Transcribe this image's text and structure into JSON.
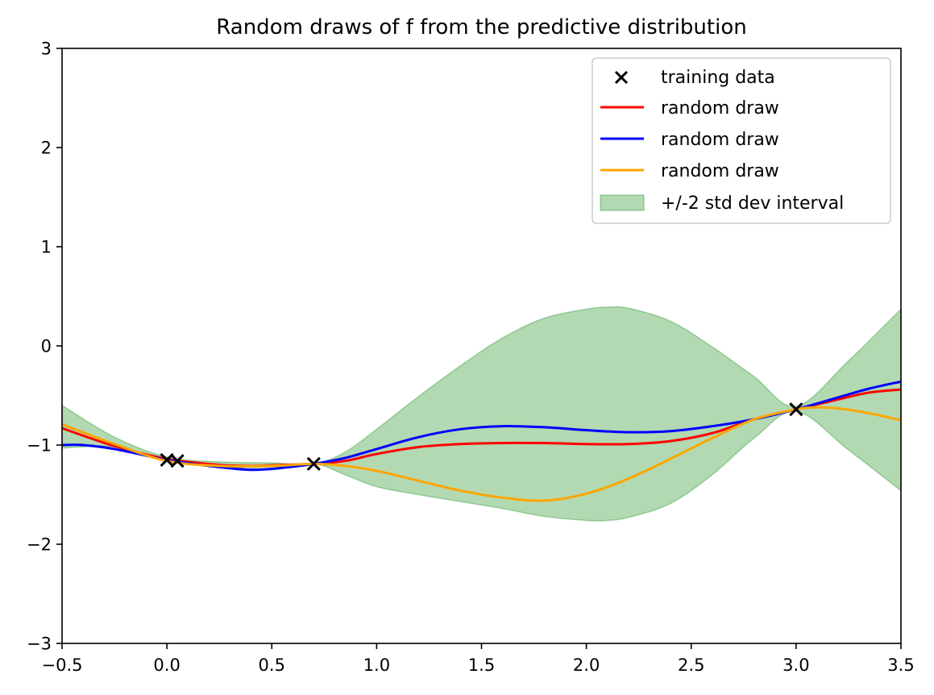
{
  "chart_data": {
    "type": "line",
    "title": "Random draws of f from the predictive distribution",
    "xlabel": "",
    "ylabel": "",
    "xlim": [
      -0.5,
      3.5
    ],
    "ylim": [
      -3,
      3
    ],
    "xticks": [
      -0.5,
      0.0,
      0.5,
      1.0,
      1.5,
      2.0,
      2.5,
      3.0,
      3.5
    ],
    "xtick_labels": [
      "−0.5",
      "0.0",
      "0.5",
      "1.0",
      "1.5",
      "2.0",
      "2.5",
      "3.0",
      "3.5"
    ],
    "yticks": [
      -3,
      -2,
      -1,
      0,
      1,
      2,
      3
    ],
    "ytick_labels": [
      "−3",
      "−2",
      "−1",
      "0",
      "1",
      "2",
      "3"
    ],
    "grid": false,
    "legend_position": "top-right",
    "training_data": {
      "name": "training data",
      "color": "#000000",
      "marker": "x",
      "points": [
        [
          0.0,
          -1.15
        ],
        [
          0.05,
          -1.16
        ],
        [
          0.7,
          -1.19
        ],
        [
          3.0,
          -0.64
        ]
      ]
    },
    "interval": {
      "name": "+/-2 std dev interval",
      "color": "#008000",
      "x": [
        -0.5,
        -0.25,
        0.0,
        0.25,
        0.5,
        0.7,
        0.85,
        1.0,
        1.2,
        1.4,
        1.6,
        1.8,
        2.0,
        2.1,
        2.2,
        2.4,
        2.6,
        2.8,
        3.0,
        3.25,
        3.5
      ],
      "upper": [
        -0.6,
        -0.92,
        -1.12,
        -1.17,
        -1.18,
        -1.19,
        -1.07,
        -0.84,
        -0.51,
        -0.2,
        0.08,
        0.28,
        0.37,
        0.39,
        0.38,
        0.25,
        -0.01,
        -0.31,
        -0.61,
        -0.15,
        0.37
      ],
      "lower": [
        -1.03,
        -1.02,
        -1.16,
        -1.22,
        -1.25,
        -1.19,
        -1.3,
        -1.42,
        -1.5,
        -1.57,
        -1.64,
        -1.72,
        -1.76,
        -1.76,
        -1.73,
        -1.59,
        -1.3,
        -0.93,
        -0.66,
        -1.05,
        -1.46
      ]
    },
    "series": [
      {
        "name": "random draw",
        "color": "#ff0000",
        "x": [
          -0.5,
          -0.25,
          0.0,
          0.25,
          0.4,
          0.55,
          0.7,
          0.85,
          1.0,
          1.2,
          1.4,
          1.6,
          1.8,
          2.0,
          2.2,
          2.4,
          2.6,
          2.8,
          3.0,
          3.2,
          3.35,
          3.5
        ],
        "values": [
          -0.83,
          -1.01,
          -1.14,
          -1.2,
          -1.21,
          -1.2,
          -1.19,
          -1.16,
          -1.09,
          -1.02,
          -0.99,
          -0.98,
          -0.98,
          -0.99,
          -0.99,
          -0.96,
          -0.88,
          -0.74,
          -0.64,
          -0.54,
          -0.47,
          -0.44
        ]
      },
      {
        "name": "random draw",
        "color": "#0000ff",
        "x": [
          -0.5,
          -0.4,
          -0.25,
          0.0,
          0.2,
          0.4,
          0.55,
          0.7,
          0.85,
          1.0,
          1.2,
          1.4,
          1.6,
          1.8,
          2.0,
          2.2,
          2.4,
          2.6,
          2.8,
          3.0,
          3.2,
          3.35,
          3.5
        ],
        "values": [
          -1.0,
          -1.0,
          -1.04,
          -1.15,
          -1.21,
          -1.25,
          -1.23,
          -1.19,
          -1.13,
          -1.04,
          -0.92,
          -0.84,
          -0.81,
          -0.82,
          -0.85,
          -0.87,
          -0.86,
          -0.81,
          -0.74,
          -0.64,
          -0.52,
          -0.43,
          -0.36
        ]
      },
      {
        "name": "random draw",
        "color": "#ffa500",
        "x": [
          -0.5,
          -0.25,
          0.0,
          0.25,
          0.5,
          0.7,
          0.85,
          1.0,
          1.2,
          1.4,
          1.6,
          1.8,
          2.0,
          2.2,
          2.4,
          2.6,
          2.8,
          3.0,
          3.1,
          3.2,
          3.35,
          3.5
        ],
        "values": [
          -0.79,
          -0.99,
          -1.16,
          -1.21,
          -1.21,
          -1.19,
          -1.21,
          -1.26,
          -1.36,
          -1.46,
          -1.53,
          -1.56,
          -1.49,
          -1.34,
          -1.14,
          -0.93,
          -0.74,
          -0.64,
          -0.62,
          -0.63,
          -0.68,
          -0.75
        ]
      }
    ]
  }
}
